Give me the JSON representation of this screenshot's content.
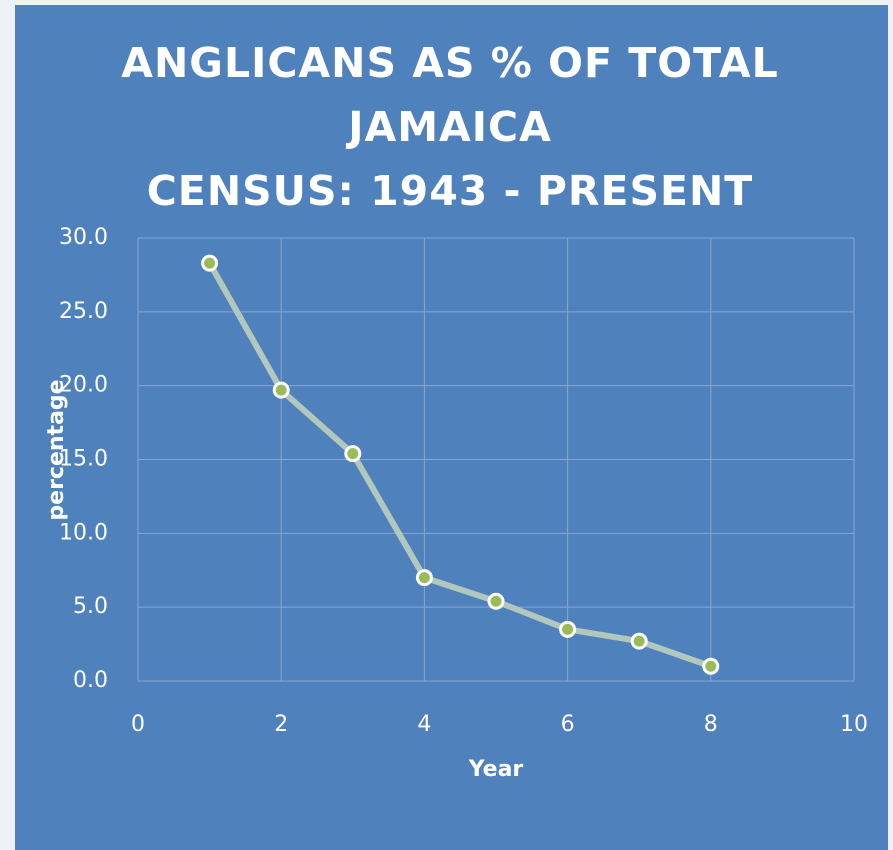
{
  "chart_data": {
    "type": "line",
    "title": [
      "ANGLICANS AS % OF TOTAL",
      "JAMAICA",
      "CENSUS: 1943 - PRESENT"
    ],
    "xlabel": "Year",
    "ylabel": "percentage",
    "series": [
      {
        "x": [
          1,
          2,
          3,
          4,
          5,
          6,
          7,
          8
        ],
        "values": [
          28.3,
          19.7,
          15.4,
          7.0,
          5.4,
          3.5,
          2.7,
          1.0
        ],
        "color": "#b3c8bd",
        "marker_color": "#9bbb59"
      }
    ],
    "xlim": [
      0,
      10
    ],
    "xticks": [
      0,
      2,
      4,
      6,
      8,
      10
    ],
    "ylim": [
      0,
      30
    ],
    "yticks": [
      {
        "value": 0,
        "label": "0.0"
      },
      {
        "value": 5,
        "label": "5.0"
      },
      {
        "value": 10,
        "label": "10.0"
      },
      {
        "value": 15,
        "label": "15.0"
      },
      {
        "value": 20,
        "label": "20.0"
      },
      {
        "value": 25,
        "label": "25.0"
      },
      {
        "value": 30,
        "label": "30.0"
      }
    ],
    "grid": true
  }
}
